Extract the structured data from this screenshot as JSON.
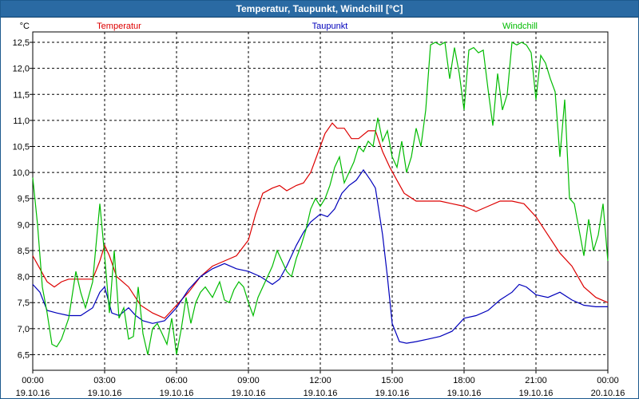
{
  "window_title": "Temperatur, Taupunkt, Windchill [°C]",
  "colors": {
    "titlebar": "#2a6aa3",
    "temperatur": "#dd0000",
    "taupunkt": "#0000bb",
    "windchill": "#00bb00"
  },
  "chart_data": {
    "type": "line",
    "title": "Temperatur, Taupunkt, Windchill [°C]",
    "ylabel": "°C",
    "xlabel": "",
    "ylim": [
      6.2,
      12.7
    ],
    "xlim": [
      0,
      24
    ],
    "grid": true,
    "legend_position": "top",
    "yticks": [
      6.5,
      7.0,
      7.5,
      8.0,
      8.5,
      9.0,
      9.5,
      10.0,
      10.5,
      11.0,
      11.5,
      12.0,
      12.5
    ],
    "ytick_labels": [
      "6,5",
      "7,0",
      "7,5",
      "8,0",
      "8,5",
      "9,0",
      "9,5",
      "10,0",
      "10,5",
      "11,0",
      "11,5",
      "12,0",
      "12,5"
    ],
    "xticks": [
      {
        "time": "00:00",
        "date": "19.10.16"
      },
      {
        "time": "03:00",
        "date": "19.10.16"
      },
      {
        "time": "06:00",
        "date": "19.10.16"
      },
      {
        "time": "09:00",
        "date": "19.10.16"
      },
      {
        "time": "12:00",
        "date": "19.10.16"
      },
      {
        "time": "15:00",
        "date": "19.10.16"
      },
      {
        "time": "18:00",
        "date": "19.10.16"
      },
      {
        "time": "21:00",
        "date": "19.10.16"
      },
      {
        "time": "00:00",
        "date": "20.10.16"
      }
    ],
    "series": [
      {
        "name": "Temperatur",
        "color": "#dd0000",
        "points": [
          [
            0,
            8.4
          ],
          [
            0.3,
            8.15
          ],
          [
            0.6,
            7.9
          ],
          [
            0.9,
            7.8
          ],
          [
            1.2,
            7.9
          ],
          [
            1.5,
            7.95
          ],
          [
            2.0,
            7.95
          ],
          [
            2.5,
            7.95
          ],
          [
            2.8,
            8.3
          ],
          [
            3.0,
            8.6
          ],
          [
            3.2,
            8.4
          ],
          [
            3.5,
            8.0
          ],
          [
            4.0,
            7.8
          ],
          [
            4.5,
            7.45
          ],
          [
            5.0,
            7.3
          ],
          [
            5.5,
            7.2
          ],
          [
            6.0,
            7.45
          ],
          [
            6.5,
            7.7
          ],
          [
            7.0,
            8.0
          ],
          [
            7.5,
            8.2
          ],
          [
            8.0,
            8.3
          ],
          [
            8.5,
            8.4
          ],
          [
            9.0,
            8.7
          ],
          [
            9.3,
            9.2
          ],
          [
            9.6,
            9.6
          ],
          [
            10.0,
            9.7
          ],
          [
            10.3,
            9.75
          ],
          [
            10.6,
            9.65
          ],
          [
            11.0,
            9.75
          ],
          [
            11.3,
            9.8
          ],
          [
            11.6,
            10.0
          ],
          [
            12.0,
            10.5
          ],
          [
            12.2,
            10.75
          ],
          [
            12.5,
            10.95
          ],
          [
            12.7,
            10.85
          ],
          [
            13.0,
            10.85
          ],
          [
            13.3,
            10.65
          ],
          [
            13.6,
            10.65
          ],
          [
            14.0,
            10.8
          ],
          [
            14.3,
            10.8
          ],
          [
            14.6,
            10.4
          ],
          [
            14.9,
            10.1
          ],
          [
            15.2,
            9.85
          ],
          [
            15.5,
            9.6
          ],
          [
            16.0,
            9.45
          ],
          [
            16.5,
            9.45
          ],
          [
            17.0,
            9.45
          ],
          [
            17.5,
            9.4
          ],
          [
            18.0,
            9.35
          ],
          [
            18.5,
            9.25
          ],
          [
            19.0,
            9.35
          ],
          [
            19.5,
            9.45
          ],
          [
            20.0,
            9.45
          ],
          [
            20.5,
            9.4
          ],
          [
            21.0,
            9.15
          ],
          [
            21.5,
            8.8
          ],
          [
            22.0,
            8.45
          ],
          [
            22.5,
            8.2
          ],
          [
            23.0,
            7.8
          ],
          [
            23.5,
            7.6
          ],
          [
            24.0,
            7.5
          ]
        ]
      },
      {
        "name": "Taupunkt",
        "color": "#0000bb",
        "points": [
          [
            0,
            7.85
          ],
          [
            0.3,
            7.7
          ],
          [
            0.6,
            7.35
          ],
          [
            1.0,
            7.3
          ],
          [
            1.5,
            7.25
          ],
          [
            2.0,
            7.25
          ],
          [
            2.5,
            7.4
          ],
          [
            2.8,
            7.7
          ],
          [
            3.0,
            7.8
          ],
          [
            3.3,
            7.3
          ],
          [
            3.6,
            7.25
          ],
          [
            4.0,
            7.4
          ],
          [
            4.3,
            7.25
          ],
          [
            4.6,
            7.15
          ],
          [
            5.0,
            7.1
          ],
          [
            5.5,
            7.15
          ],
          [
            6.0,
            7.4
          ],
          [
            6.5,
            7.75
          ],
          [
            7.0,
            8.0
          ],
          [
            7.5,
            8.15
          ],
          [
            8.0,
            8.25
          ],
          [
            8.5,
            8.15
          ],
          [
            9.0,
            8.1
          ],
          [
            9.5,
            8.0
          ],
          [
            10.0,
            7.85
          ],
          [
            10.3,
            7.95
          ],
          [
            10.6,
            8.2
          ],
          [
            11.0,
            8.6
          ],
          [
            11.3,
            8.85
          ],
          [
            11.6,
            9.05
          ],
          [
            12.0,
            9.2
          ],
          [
            12.3,
            9.15
          ],
          [
            12.6,
            9.3
          ],
          [
            12.9,
            9.6
          ],
          [
            13.2,
            9.75
          ],
          [
            13.5,
            9.85
          ],
          [
            13.8,
            10.05
          ],
          [
            14.1,
            9.85
          ],
          [
            14.3,
            9.7
          ],
          [
            14.6,
            8.8
          ],
          [
            14.8,
            8.0
          ],
          [
            15.0,
            7.1
          ],
          [
            15.3,
            6.75
          ],
          [
            15.6,
            6.72
          ],
          [
            16.0,
            6.75
          ],
          [
            16.5,
            6.8
          ],
          [
            17.0,
            6.85
          ],
          [
            17.5,
            6.95
          ],
          [
            18.0,
            7.2
          ],
          [
            18.5,
            7.25
          ],
          [
            19.0,
            7.35
          ],
          [
            19.5,
            7.55
          ],
          [
            20.0,
            7.7
          ],
          [
            20.3,
            7.85
          ],
          [
            20.6,
            7.8
          ],
          [
            21.0,
            7.65
          ],
          [
            21.5,
            7.6
          ],
          [
            22.0,
            7.7
          ],
          [
            22.5,
            7.55
          ],
          [
            23.0,
            7.45
          ],
          [
            23.5,
            7.42
          ],
          [
            24.0,
            7.42
          ]
        ]
      },
      {
        "name": "Windchill",
        "color": "#00bb00",
        "points": [
          [
            0,
            9.9
          ],
          [
            0.2,
            9.0
          ],
          [
            0.4,
            7.8
          ],
          [
            0.6,
            7.3
          ],
          [
            0.8,
            6.7
          ],
          [
            1.0,
            6.65
          ],
          [
            1.2,
            6.8
          ],
          [
            1.5,
            7.2
          ],
          [
            1.8,
            8.1
          ],
          [
            2.0,
            7.7
          ],
          [
            2.2,
            7.4
          ],
          [
            2.5,
            7.9
          ],
          [
            2.8,
            9.4
          ],
          [
            3.0,
            8.4
          ],
          [
            3.2,
            7.3
          ],
          [
            3.4,
            8.5
          ],
          [
            3.6,
            7.2
          ],
          [
            3.8,
            7.4
          ],
          [
            4.0,
            6.8
          ],
          [
            4.2,
            6.85
          ],
          [
            4.4,
            7.8
          ],
          [
            4.6,
            6.9
          ],
          [
            4.8,
            6.5
          ],
          [
            5.0,
            7.0
          ],
          [
            5.2,
            7.1
          ],
          [
            5.4,
            6.9
          ],
          [
            5.6,
            6.7
          ],
          [
            5.8,
            7.2
          ],
          [
            6.0,
            6.5
          ],
          [
            6.2,
            7.0
          ],
          [
            6.4,
            7.6
          ],
          [
            6.6,
            7.1
          ],
          [
            6.8,
            7.5
          ],
          [
            7.0,
            7.7
          ],
          [
            7.2,
            7.8
          ],
          [
            7.5,
            7.6
          ],
          [
            7.8,
            7.9
          ],
          [
            8.0,
            7.55
          ],
          [
            8.2,
            7.5
          ],
          [
            8.4,
            7.75
          ],
          [
            8.6,
            7.9
          ],
          [
            8.8,
            7.8
          ],
          [
            9.0,
            7.5
          ],
          [
            9.2,
            7.25
          ],
          [
            9.4,
            7.6
          ],
          [
            9.6,
            7.8
          ],
          [
            9.8,
            8.0
          ],
          [
            10.0,
            8.2
          ],
          [
            10.2,
            8.5
          ],
          [
            10.4,
            8.3
          ],
          [
            10.6,
            8.1
          ],
          [
            10.8,
            8.0
          ],
          [
            11.0,
            8.35
          ],
          [
            11.2,
            8.6
          ],
          [
            11.4,
            8.9
          ],
          [
            11.6,
            9.3
          ],
          [
            11.8,
            9.5
          ],
          [
            12.0,
            9.35
          ],
          [
            12.2,
            9.5
          ],
          [
            12.4,
            9.75
          ],
          [
            12.6,
            10.1
          ],
          [
            12.8,
            10.3
          ],
          [
            13.0,
            9.8
          ],
          [
            13.2,
            10.0
          ],
          [
            13.4,
            10.2
          ],
          [
            13.6,
            10.5
          ],
          [
            13.8,
            10.4
          ],
          [
            14.0,
            10.6
          ],
          [
            14.2,
            10.5
          ],
          [
            14.4,
            11.05
          ],
          [
            14.6,
            10.6
          ],
          [
            14.8,
            10.8
          ],
          [
            15.0,
            10.3
          ],
          [
            15.2,
            10.1
          ],
          [
            15.4,
            10.6
          ],
          [
            15.6,
            10.0
          ],
          [
            15.8,
            10.3
          ],
          [
            16.0,
            10.85
          ],
          [
            16.2,
            10.5
          ],
          [
            16.4,
            11.2
          ],
          [
            16.6,
            12.45
          ],
          [
            16.8,
            12.5
          ],
          [
            17.0,
            12.45
          ],
          [
            17.2,
            12.5
          ],
          [
            17.4,
            11.8
          ],
          [
            17.6,
            12.4
          ],
          [
            17.8,
            11.9
          ],
          [
            18.0,
            11.2
          ],
          [
            18.2,
            12.35
          ],
          [
            18.4,
            12.4
          ],
          [
            18.6,
            12.3
          ],
          [
            18.8,
            12.35
          ],
          [
            19.0,
            11.6
          ],
          [
            19.2,
            10.9
          ],
          [
            19.4,
            11.9
          ],
          [
            19.6,
            11.2
          ],
          [
            19.8,
            11.5
          ],
          [
            20.0,
            12.5
          ],
          [
            20.2,
            12.45
          ],
          [
            20.4,
            12.5
          ],
          [
            20.6,
            12.45
          ],
          [
            20.8,
            12.3
          ],
          [
            21.0,
            11.4
          ],
          [
            21.2,
            12.25
          ],
          [
            21.4,
            12.1
          ],
          [
            21.6,
            11.8
          ],
          [
            21.8,
            11.55
          ],
          [
            22.0,
            10.3
          ],
          [
            22.2,
            11.4
          ],
          [
            22.4,
            9.5
          ],
          [
            22.6,
            9.4
          ],
          [
            22.8,
            8.9
          ],
          [
            23.0,
            8.4
          ],
          [
            23.2,
            9.1
          ],
          [
            23.4,
            8.5
          ],
          [
            23.6,
            8.8
          ],
          [
            23.8,
            9.4
          ],
          [
            24.0,
            8.3
          ]
        ]
      }
    ]
  }
}
